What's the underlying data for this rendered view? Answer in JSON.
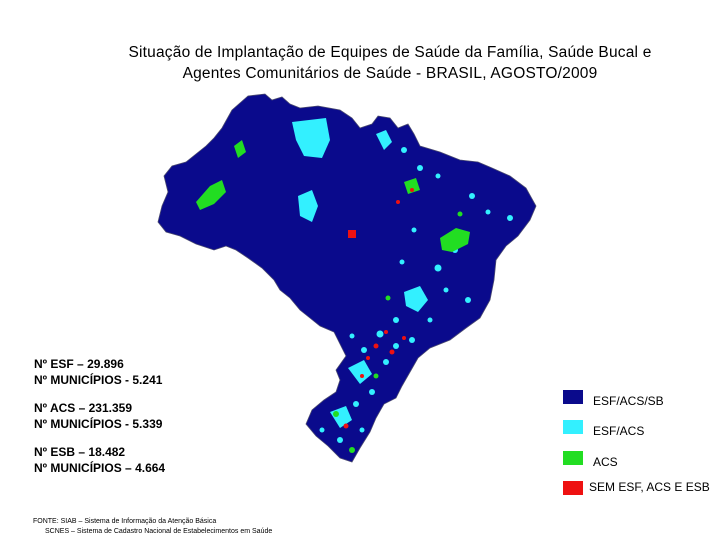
{
  "title": {
    "line1": "Situação de Implantação de Equipes de Saúde da Família, Saúde Bucal e",
    "line2": "Agentes Comunitários de Saúde - BRASIL, AGOSTO/2009"
  },
  "stats": {
    "esf": "Nº  ESF – 29.896",
    "esf_municipios": "Nº MUNICÍPIOS  - 5.241",
    "acs": "Nº ACS – 231.359",
    "acs_municipios": "Nº MUNICÍPIOS  - 5.339",
    "esb": "Nº ESB – 18.482",
    "esb_municipios": "Nº MUNICÍPIOS – 4.664"
  },
  "legend": [
    {
      "label": "ESF/ACS/SB",
      "color": "#0a0a8c"
    },
    {
      "label": "ESF/ACS",
      "color": "#33f0ff"
    },
    {
      "label": "ACS",
      "color": "#22dd22"
    },
    {
      "label": "SEM ESF, ACS E ESB",
      "color": "#ee1111"
    }
  ],
  "source": {
    "line1": "FONTE:  SIAB – Sistema de Informação da Atenção Básica",
    "line2": "SCNES – Sistema de Cadastro Nacional de Estabelecimentos em Saúde"
  },
  "colors": {
    "esf_acs_sb": "#0a0a8c",
    "esf_acs": "#33f0ff",
    "acs": "#22dd22",
    "sem": "#ee1111",
    "border": "#4a4a70"
  }
}
